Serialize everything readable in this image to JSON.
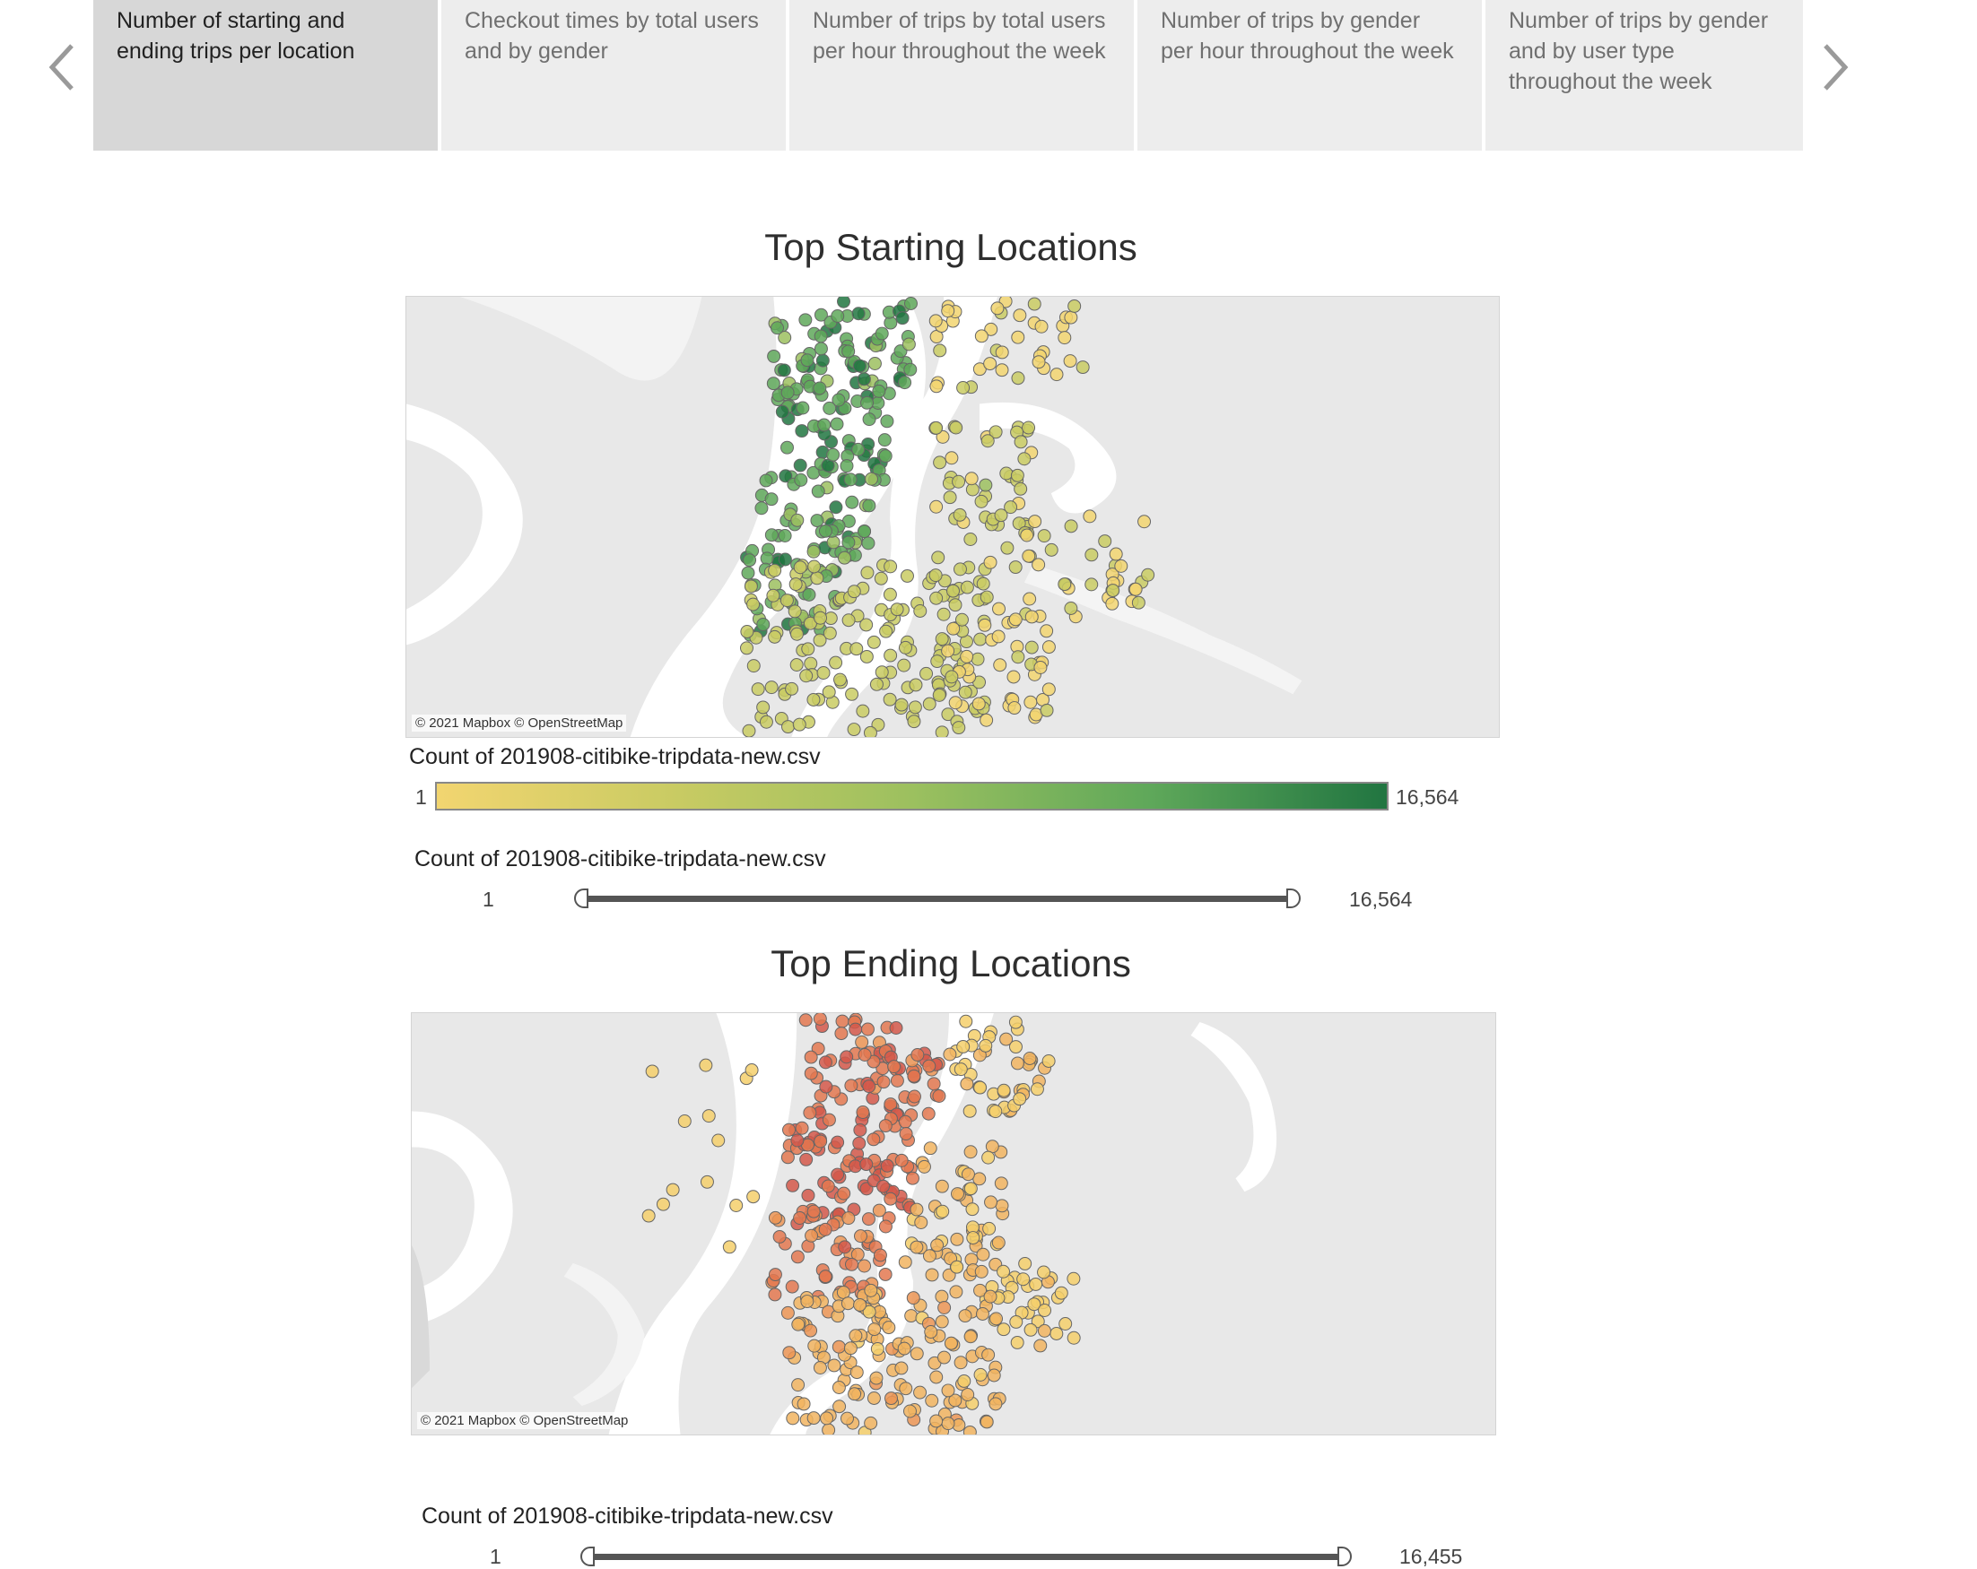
{
  "tabs": [
    {
      "label": "Number of starting and ending trips per location",
      "active": true
    },
    {
      "label": "Checkout times by total users and by gender",
      "active": false
    },
    {
      "label": "Number of trips by total users per hour throughout the week",
      "active": false
    },
    {
      "label": "Number of trips by gender per hour throughout the week",
      "active": false
    },
    {
      "label": "Number of trips by gender and by user type throughout the week",
      "active": false
    }
  ],
  "start": {
    "title": "Top Starting Locations",
    "attribution": "© 2021 Mapbox © OpenStreetMap",
    "color_legend": {
      "title": "Count of 201908-citibike-tripdata-new.csv",
      "min": "1",
      "max": "16,564"
    },
    "filter": {
      "title": "Count of 201908-citibike-tripdata-new.csv",
      "min": "1",
      "max": "16,564"
    },
    "palette": [
      "#f2d570",
      "#c9cb63",
      "#9cc05f",
      "#5fa85a",
      "#217541"
    ]
  },
  "end": {
    "title": "Top Ending Locations",
    "attribution": "© 2021 Mapbox © OpenStreetMap",
    "filter": {
      "title": "Count of 201908-citibike-tripdata-new.csv",
      "min": "1",
      "max": "16,455"
    },
    "palette": [
      "#f5cf6b",
      "#f1b460",
      "#ec9555",
      "#e37850",
      "#d4584a"
    ]
  }
}
